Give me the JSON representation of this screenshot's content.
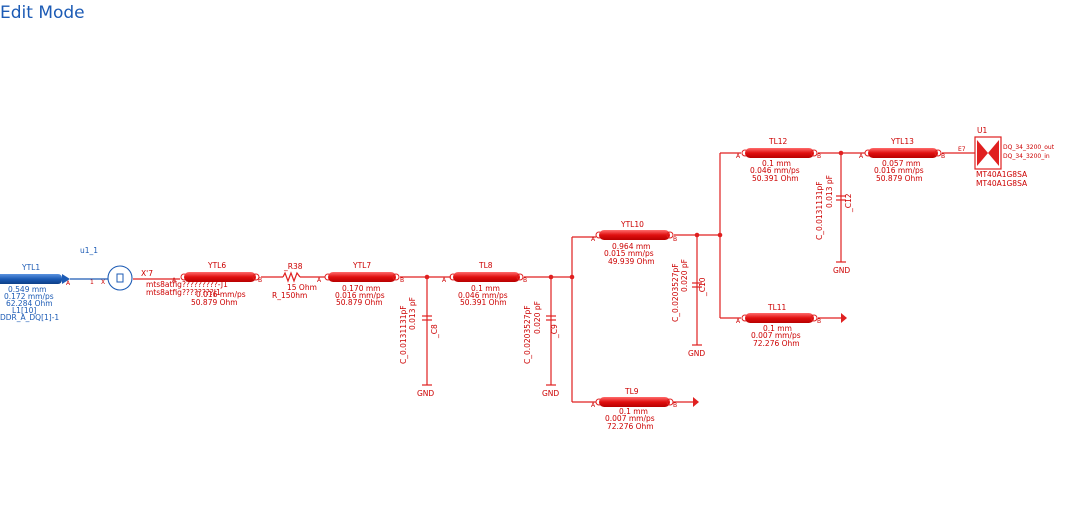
{
  "mode_label": "Edit Mode",
  "colors": {
    "component": "#e02020",
    "selected": "#1c5bb5",
    "background": "#ffffff"
  },
  "lines": [
    {
      "id": "ytl1",
      "name": "YTL1",
      "params": [
        "0.549 mm",
        "0.172 mm/ps",
        "62.284 Ohm"
      ],
      "extra": [
        "L1[10]",
        "DDR_A_DQ[1]-1"
      ],
      "selected": true
    },
    {
      "id": "ytl6",
      "name": "YTL6",
      "params": [
        "mts8atfig?????????-J1",
        "mts8atfig????????J1",
        "0.016 mm/ps",
        "50.879 Ohm"
      ]
    },
    {
      "id": "ytl7",
      "name": "YTL7",
      "params": [
        "0.170 mm",
        "0.016 mm/ps",
        "50.879 Ohm"
      ]
    },
    {
      "id": "tl8",
      "name": "TL8",
      "params": [
        "0.1 mm",
        "0.046 mm/ps",
        "50.391 Ohm"
      ]
    },
    {
      "id": "ytl10",
      "name": "YTL10",
      "params": [
        "0.964 mm",
        "0.015 mm/ps",
        "49.939 Ohm"
      ]
    },
    {
      "id": "tl12",
      "name": "TL12",
      "params": [
        "0.1 mm",
        "0.046 mm/ps",
        "50.391 Ohm"
      ]
    },
    {
      "id": "ytl13",
      "name": "YTL13",
      "params": [
        "0.057 mm",
        "0.016 mm/ps",
        "50.879 Ohm"
      ]
    },
    {
      "id": "tl11",
      "name": "TL11",
      "params": [
        "0.1 mm",
        "0.007 mm/ps",
        "72.276 Ohm"
      ]
    },
    {
      "id": "tl9",
      "name": "TL9",
      "params": [
        "0.1 mm",
        "0.007 mm/ps",
        "72.276 Ohm"
      ]
    }
  ],
  "connector": {
    "name": "u1_1",
    "ref": "X'7",
    "pins": [
      "1",
      "X"
    ]
  },
  "resistor": {
    "name": "_R38",
    "value": "15 Ohm",
    "model": "R_150hm"
  },
  "caps": [
    {
      "id": "c8",
      "name": "_C8",
      "model": "C_0.0131131pF",
      "value": "0.013 pF"
    },
    {
      "id": "c9",
      "name": "_C9",
      "model": "C_0.0203527pF",
      "value": "0.020 pF"
    },
    {
      "id": "c10",
      "name": "_C10",
      "model": "C_0.0203527pF",
      "value": "0.020 pF"
    },
    {
      "id": "c12",
      "name": "_C12",
      "model": "C_0.0131131pF",
      "value": "0.013 pF"
    }
  ],
  "gnd_label": "GND",
  "ic": {
    "name": "U1",
    "model1": "MT40A1G8SA",
    "model2": "MT40A1G8SA",
    "pin": "E7",
    "net1": "DQ_34_3200_out",
    "net2": "DQ_34_3200_in"
  },
  "pin_a": "A",
  "pin_b": "B"
}
